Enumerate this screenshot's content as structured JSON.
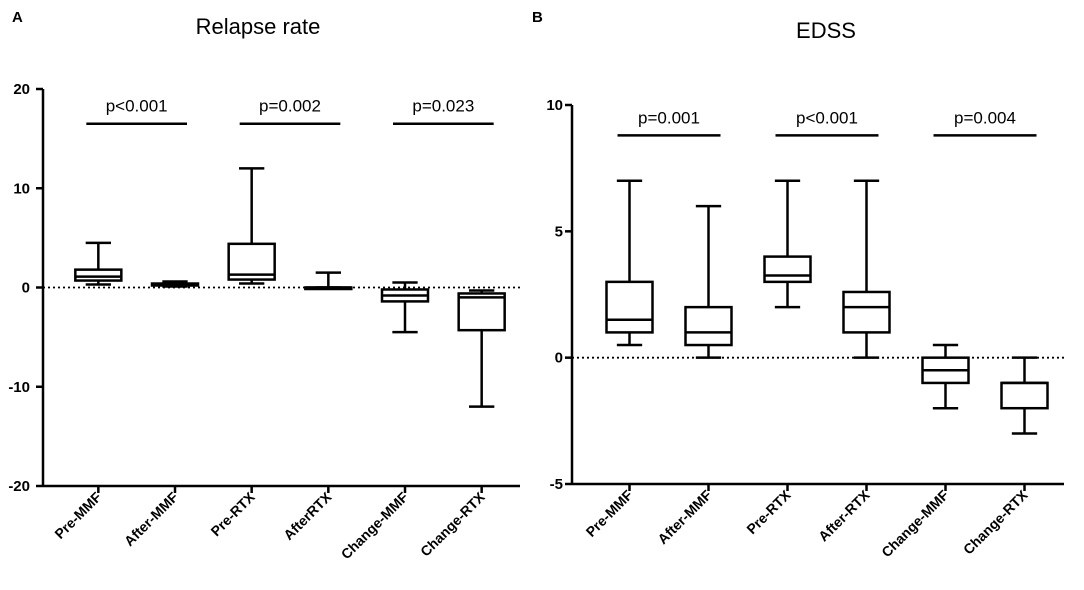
{
  "chart_data": [
    {
      "panel": "A",
      "type": "box",
      "title": "Relapse rate",
      "xlabel": "",
      "ylabel": "",
      "ylim": [
        -20,
        20
      ],
      "yticks": [
        20,
        10,
        0,
        -10,
        -20
      ],
      "ytick_labels": [
        "20",
        "10",
        "0",
        "-10",
        "-20"
      ],
      "reference_line": 0,
      "categories": [
        "Pre-MMF",
        "After-MMF",
        "Pre-RTX",
        "AfterRTX",
        "Change-MMF",
        "Change-RTX"
      ],
      "boxes": [
        {
          "min": 0.3,
          "q1": 0.7,
          "median": 1.1,
          "q3": 1.8,
          "max": 4.5
        },
        {
          "min": 0.1,
          "q1": 0.2,
          "median": 0.3,
          "q3": 0.4,
          "max": 0.6
        },
        {
          "min": 0.4,
          "q1": 0.8,
          "median": 1.3,
          "q3": 4.4,
          "max": 12.0
        },
        {
          "min": 0.0,
          "q1": 0.0,
          "median": 0.0,
          "q3": 0.0,
          "max": 1.5
        },
        {
          "min": -4.5,
          "q1": -1.4,
          "median": -0.8,
          "q3": -0.2,
          "max": 0.5
        },
        {
          "min": -12.0,
          "q1": -4.3,
          "median": -1.0,
          "q3": -0.6,
          "max": -0.3
        }
      ],
      "annotations": [
        {
          "text": "p<0.001",
          "from": 0,
          "to": 1,
          "y": 16.5
        },
        {
          "text": "p=0.002",
          "from": 2,
          "to": 3,
          "y": 16.5
        },
        {
          "text": "p=0.023",
          "from": 4,
          "to": 5,
          "y": 16.5
        }
      ]
    },
    {
      "panel": "B",
      "type": "box",
      "title": "EDSS",
      "xlabel": "",
      "ylabel": "",
      "ylim": [
        -5,
        10
      ],
      "yticks": [
        10,
        5,
        0,
        -5
      ],
      "ytick_labels": [
        "10",
        "5",
        "0",
        "-5"
      ],
      "reference_line": 0,
      "categories": [
        "Pre-MMF",
        "After-MMF",
        "Pre-RTX",
        "After-RTX",
        "Change-MMF",
        "Change-RTX"
      ],
      "boxes": [
        {
          "min": 0.5,
          "q1": 1.0,
          "median": 1.5,
          "q3": 3.0,
          "max": 7.0
        },
        {
          "min": 0.0,
          "q1": 0.5,
          "median": 1.0,
          "q3": 2.0,
          "max": 6.0
        },
        {
          "min": 2.0,
          "q1": 3.0,
          "median": 3.25,
          "q3": 4.0,
          "max": 7.0
        },
        {
          "min": 0.0,
          "q1": 1.0,
          "median": 2.0,
          "q3": 2.6,
          "max": 7.0
        },
        {
          "min": -2.0,
          "q1": -1.0,
          "median": -0.5,
          "q3": 0.0,
          "max": 0.5
        },
        {
          "min": -3.0,
          "q1": -2.0,
          "median": -1.0,
          "q3": -1.0,
          "max": 0.0
        }
      ],
      "annotations": [
        {
          "text": "p=0.001",
          "from": 0,
          "to": 1,
          "y": 8.8
        },
        {
          "text": "p<0.001",
          "from": 2,
          "to": 3,
          "y": 8.8
        },
        {
          "text": "p=0.004",
          "from": 4,
          "to": 5,
          "y": 8.8
        }
      ]
    }
  ]
}
